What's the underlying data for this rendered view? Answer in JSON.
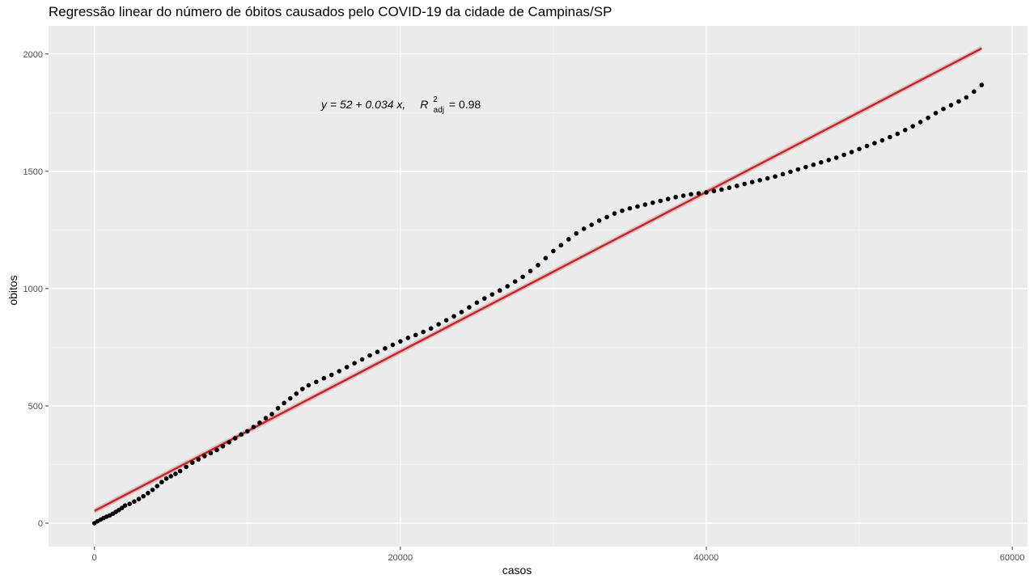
{
  "chart_data": {
    "type": "scatter",
    "title": "Regressão linear do número de óbitos causados pelo COVID-19 da cidade de Campinas/SP",
    "xlabel": "casos",
    "ylabel": "obitos",
    "xlim": [
      -3000,
      61000
    ],
    "ylim": [
      -100,
      2120
    ],
    "x_ticks": [
      0,
      20000,
      40000,
      60000
    ],
    "x_tick_labels": [
      "0",
      "20000",
      "40000",
      "60000"
    ],
    "y_ticks": [
      0,
      500,
      1000,
      1500,
      2000
    ],
    "y_tick_labels": [
      "0",
      "500",
      "1000",
      "1500",
      "2000"
    ],
    "grid": true,
    "annotation": {
      "y_eq": "y = 52 + 0.034 x,",
      "r": "R",
      "r_sup": "2",
      "r_sub": "adj",
      "r_value": "= 0.98"
    },
    "regression": {
      "intercept": 52,
      "slope": 0.034,
      "color": "#e31a1c",
      "band_color": "#bdbdbd"
    },
    "series": [
      {
        "point_color": "#000000",
        "points": [
          [
            0,
            0
          ],
          [
            200,
            8
          ],
          [
            400,
            15
          ],
          [
            600,
            22
          ],
          [
            800,
            28
          ],
          [
            1000,
            33
          ],
          [
            1200,
            40
          ],
          [
            1400,
            48
          ],
          [
            1600,
            56
          ],
          [
            1800,
            65
          ],
          [
            2000,
            75
          ],
          [
            2300,
            82
          ],
          [
            2600,
            92
          ],
          [
            2900,
            103
          ],
          [
            3200,
            115
          ],
          [
            3500,
            128
          ],
          [
            3800,
            142
          ],
          [
            4100,
            158
          ],
          [
            4400,
            175
          ],
          [
            4700,
            190
          ],
          [
            5000,
            200
          ],
          [
            5300,
            210
          ],
          [
            5600,
            222
          ],
          [
            6000,
            240
          ],
          [
            6400,
            258
          ],
          [
            6800,
            272
          ],
          [
            7200,
            286
          ],
          [
            7600,
            298
          ],
          [
            8000,
            312
          ],
          [
            8400,
            328
          ],
          [
            8800,
            345
          ],
          [
            9200,
            362
          ],
          [
            9600,
            378
          ],
          [
            10000,
            392
          ],
          [
            10400,
            410
          ],
          [
            10800,
            428
          ],
          [
            11200,
            448
          ],
          [
            11600,
            465
          ],
          [
            12000,
            490
          ],
          [
            12400,
            512
          ],
          [
            12800,
            532
          ],
          [
            13200,
            552
          ],
          [
            13600,
            572
          ],
          [
            14000,
            588
          ],
          [
            14500,
            602
          ],
          [
            15000,
            618
          ],
          [
            15500,
            632
          ],
          [
            16000,
            648
          ],
          [
            16500,
            665
          ],
          [
            17000,
            682
          ],
          [
            17500,
            698
          ],
          [
            18000,
            715
          ],
          [
            18500,
            730
          ],
          [
            19000,
            745
          ],
          [
            19500,
            760
          ],
          [
            20000,
            775
          ],
          [
            20500,
            790
          ],
          [
            21000,
            802
          ],
          [
            21500,
            815
          ],
          [
            22000,
            830
          ],
          [
            22500,
            848
          ],
          [
            23000,
            865
          ],
          [
            23500,
            882
          ],
          [
            24000,
            900
          ],
          [
            24500,
            920
          ],
          [
            25000,
            940
          ],
          [
            25500,
            958
          ],
          [
            26000,
            975
          ],
          [
            26500,
            992
          ],
          [
            27000,
            1010
          ],
          [
            27500,
            1030
          ],
          [
            28000,
            1050
          ],
          [
            28500,
            1075
          ],
          [
            29000,
            1100
          ],
          [
            29500,
            1130
          ],
          [
            30000,
            1160
          ],
          [
            30500,
            1185
          ],
          [
            31000,
            1210
          ],
          [
            31500,
            1235
          ],
          [
            32000,
            1255
          ],
          [
            32500,
            1272
          ],
          [
            33000,
            1290
          ],
          [
            33500,
            1305
          ],
          [
            34000,
            1320
          ],
          [
            34500,
            1332
          ],
          [
            35000,
            1342
          ],
          [
            35500,
            1350
          ],
          [
            36000,
            1358
          ],
          [
            36500,
            1366
          ],
          [
            37000,
            1374
          ],
          [
            37500,
            1382
          ],
          [
            38000,
            1390
          ],
          [
            38500,
            1396
          ],
          [
            39000,
            1402
          ],
          [
            39500,
            1406
          ],
          [
            40000,
            1410
          ],
          [
            40500,
            1416
          ],
          [
            41000,
            1422
          ],
          [
            41500,
            1430
          ],
          [
            42000,
            1438
          ],
          [
            42500,
            1446
          ],
          [
            43000,
            1454
          ],
          [
            43500,
            1462
          ],
          [
            44000,
            1470
          ],
          [
            44500,
            1478
          ],
          [
            45000,
            1488
          ],
          [
            45500,
            1498
          ],
          [
            46000,
            1508
          ],
          [
            46500,
            1518
          ],
          [
            47000,
            1528
          ],
          [
            47500,
            1538
          ],
          [
            48000,
            1548
          ],
          [
            48500,
            1558
          ],
          [
            49000,
            1570
          ],
          [
            49500,
            1582
          ],
          [
            50000,
            1595
          ],
          [
            50500,
            1608
          ],
          [
            51000,
            1620
          ],
          [
            51500,
            1632
          ],
          [
            52000,
            1646
          ],
          [
            52500,
            1660
          ],
          [
            53000,
            1676
          ],
          [
            53500,
            1692
          ],
          [
            54000,
            1710
          ],
          [
            54500,
            1728
          ],
          [
            55000,
            1748
          ],
          [
            55500,
            1766
          ],
          [
            56000,
            1782
          ],
          [
            56500,
            1798
          ],
          [
            57000,
            1815
          ],
          [
            57500,
            1840
          ],
          [
            58000,
            1868
          ]
        ]
      }
    ],
    "colors": {
      "panel": "#ebebeb",
      "grid_major": "#ffffff",
      "grid_minor": "#f5f5f5"
    }
  }
}
